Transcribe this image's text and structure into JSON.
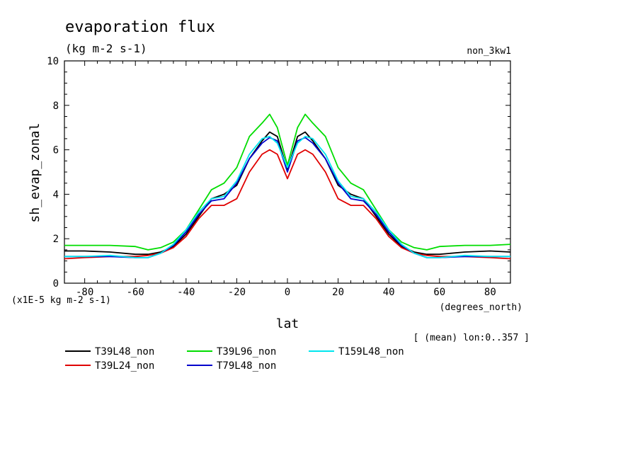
{
  "chart_data": {
    "type": "line",
    "title": "evaporation flux",
    "units": "(kg m-2 s-1)",
    "run_label": "non_3kw1",
    "ylabel": "sh_evap_zonal",
    "xlabel": "lat",
    "x_units": "(degrees_north)",
    "y_scale_note": "(x1E-5 kg m-2 s-1)",
    "mean_note": "[ (mean) lon:0..357 ]",
    "xlim": [
      -88,
      88
    ],
    "ylim": [
      0,
      10
    ],
    "x_ticks": [
      -80,
      -60,
      -40,
      -20,
      0,
      20,
      40,
      60,
      80
    ],
    "x_tick_labels": [
      "-80",
      "-60",
      "-40",
      "-20",
      "0",
      "20",
      "40",
      "60",
      "80"
    ],
    "y_ticks": [
      0,
      2,
      4,
      6,
      8,
      10
    ],
    "y_tick_labels": [
      "0",
      "2",
      "4",
      "6",
      "8",
      "10"
    ],
    "x": [
      -88,
      -80,
      -70,
      -60,
      -55,
      -50,
      -45,
      -40,
      -35,
      -30,
      -25,
      -20,
      -15,
      -10,
      -7,
      -4,
      0,
      4,
      7,
      10,
      15,
      20,
      25,
      30,
      35,
      40,
      45,
      50,
      55,
      60,
      70,
      80,
      88
    ],
    "series": [
      {
        "name": "T39L48_non",
        "color": "#000000",
        "values": [
          1.45,
          1.45,
          1.4,
          1.3,
          1.3,
          1.4,
          1.65,
          2.2,
          3.0,
          3.8,
          4.0,
          4.4,
          5.6,
          6.4,
          6.8,
          6.6,
          5.1,
          6.6,
          6.8,
          6.4,
          5.6,
          4.4,
          4.0,
          3.8,
          3.0,
          2.2,
          1.65,
          1.4,
          1.3,
          1.3,
          1.4,
          1.45,
          1.4
        ]
      },
      {
        "name": "T39L24_non",
        "color": "#e00000",
        "values": [
          1.1,
          1.15,
          1.2,
          1.2,
          1.25,
          1.35,
          1.6,
          2.1,
          2.9,
          3.5,
          3.5,
          3.8,
          5.0,
          5.8,
          6.0,
          5.8,
          4.7,
          5.8,
          6.0,
          5.8,
          5.0,
          3.8,
          3.5,
          3.5,
          2.9,
          2.1,
          1.6,
          1.35,
          1.25,
          1.2,
          1.2,
          1.15,
          1.1
        ]
      },
      {
        "name": "T39L96_non",
        "color": "#00dd00",
        "values": [
          1.7,
          1.7,
          1.7,
          1.65,
          1.5,
          1.6,
          1.85,
          2.4,
          3.3,
          4.2,
          4.5,
          5.2,
          6.6,
          7.2,
          7.6,
          7.0,
          5.3,
          7.0,
          7.6,
          7.2,
          6.6,
          5.2,
          4.5,
          4.2,
          3.3,
          2.4,
          1.85,
          1.6,
          1.5,
          1.65,
          1.7,
          1.7,
          1.75
        ]
      },
      {
        "name": "T79L48_non",
        "color": "#0000cc",
        "values": [
          1.2,
          1.2,
          1.2,
          1.15,
          1.15,
          1.35,
          1.7,
          2.3,
          3.1,
          3.7,
          3.8,
          4.5,
          5.6,
          6.3,
          6.55,
          6.4,
          5.0,
          6.4,
          6.55,
          6.3,
          5.6,
          4.5,
          3.8,
          3.7,
          3.1,
          2.3,
          1.7,
          1.35,
          1.15,
          1.15,
          1.2,
          1.2,
          1.2
        ]
      },
      {
        "name": "T159L48_non",
        "color": "#00e5ee",
        "values": [
          1.2,
          1.2,
          1.25,
          1.15,
          1.15,
          1.35,
          1.75,
          2.4,
          3.2,
          3.8,
          3.9,
          4.6,
          5.8,
          6.5,
          6.6,
          6.3,
          5.2,
          6.3,
          6.6,
          6.5,
          5.8,
          4.6,
          3.9,
          3.8,
          3.2,
          2.4,
          1.75,
          1.35,
          1.15,
          1.15,
          1.25,
          1.2,
          1.2
        ]
      }
    ]
  }
}
